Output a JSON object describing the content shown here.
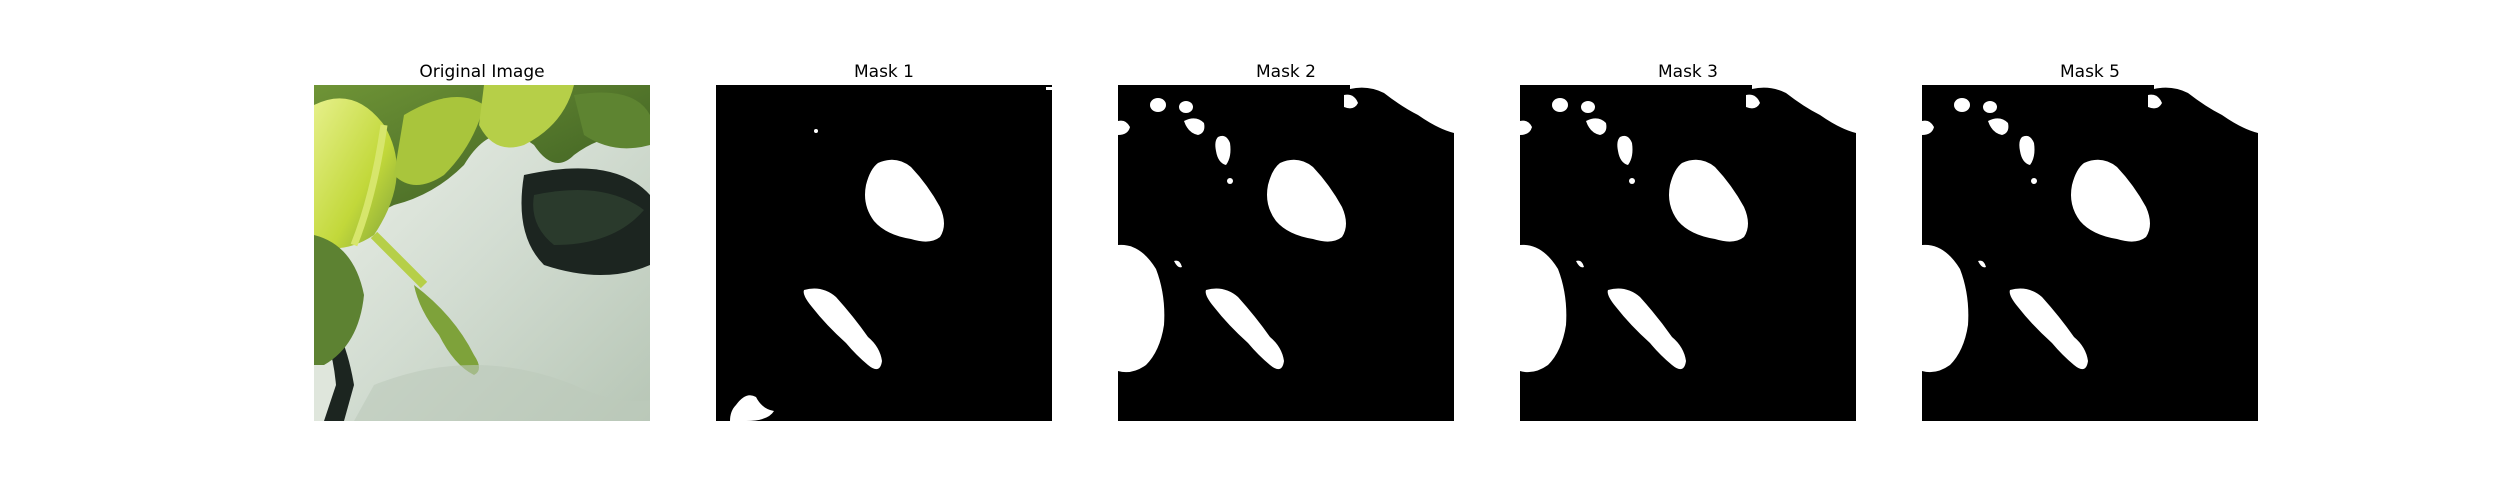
{
  "panels": [
    {
      "title": "Original Image",
      "kind": "photo",
      "subject": "plant-leaves-over-white-pot"
    },
    {
      "title": "Mask 1",
      "kind": "mask"
    },
    {
      "title": "Mask 2",
      "kind": "mask"
    },
    {
      "title": "Mask 3",
      "kind": "mask"
    },
    {
      "title": "Mask 5",
      "kind": "mask"
    }
  ],
  "colors": {
    "background": "#ffffff",
    "mask_background": "#000000",
    "mask_foreground": "#ffffff",
    "leaf_bright": "#c8de3c",
    "leaf_mid": "#7fa23a",
    "leaf_dark": "#3f6224",
    "pot_white": "#d7dfd6",
    "pot_shadow": "#9fb09f",
    "dark_pot": "#1c2520"
  }
}
